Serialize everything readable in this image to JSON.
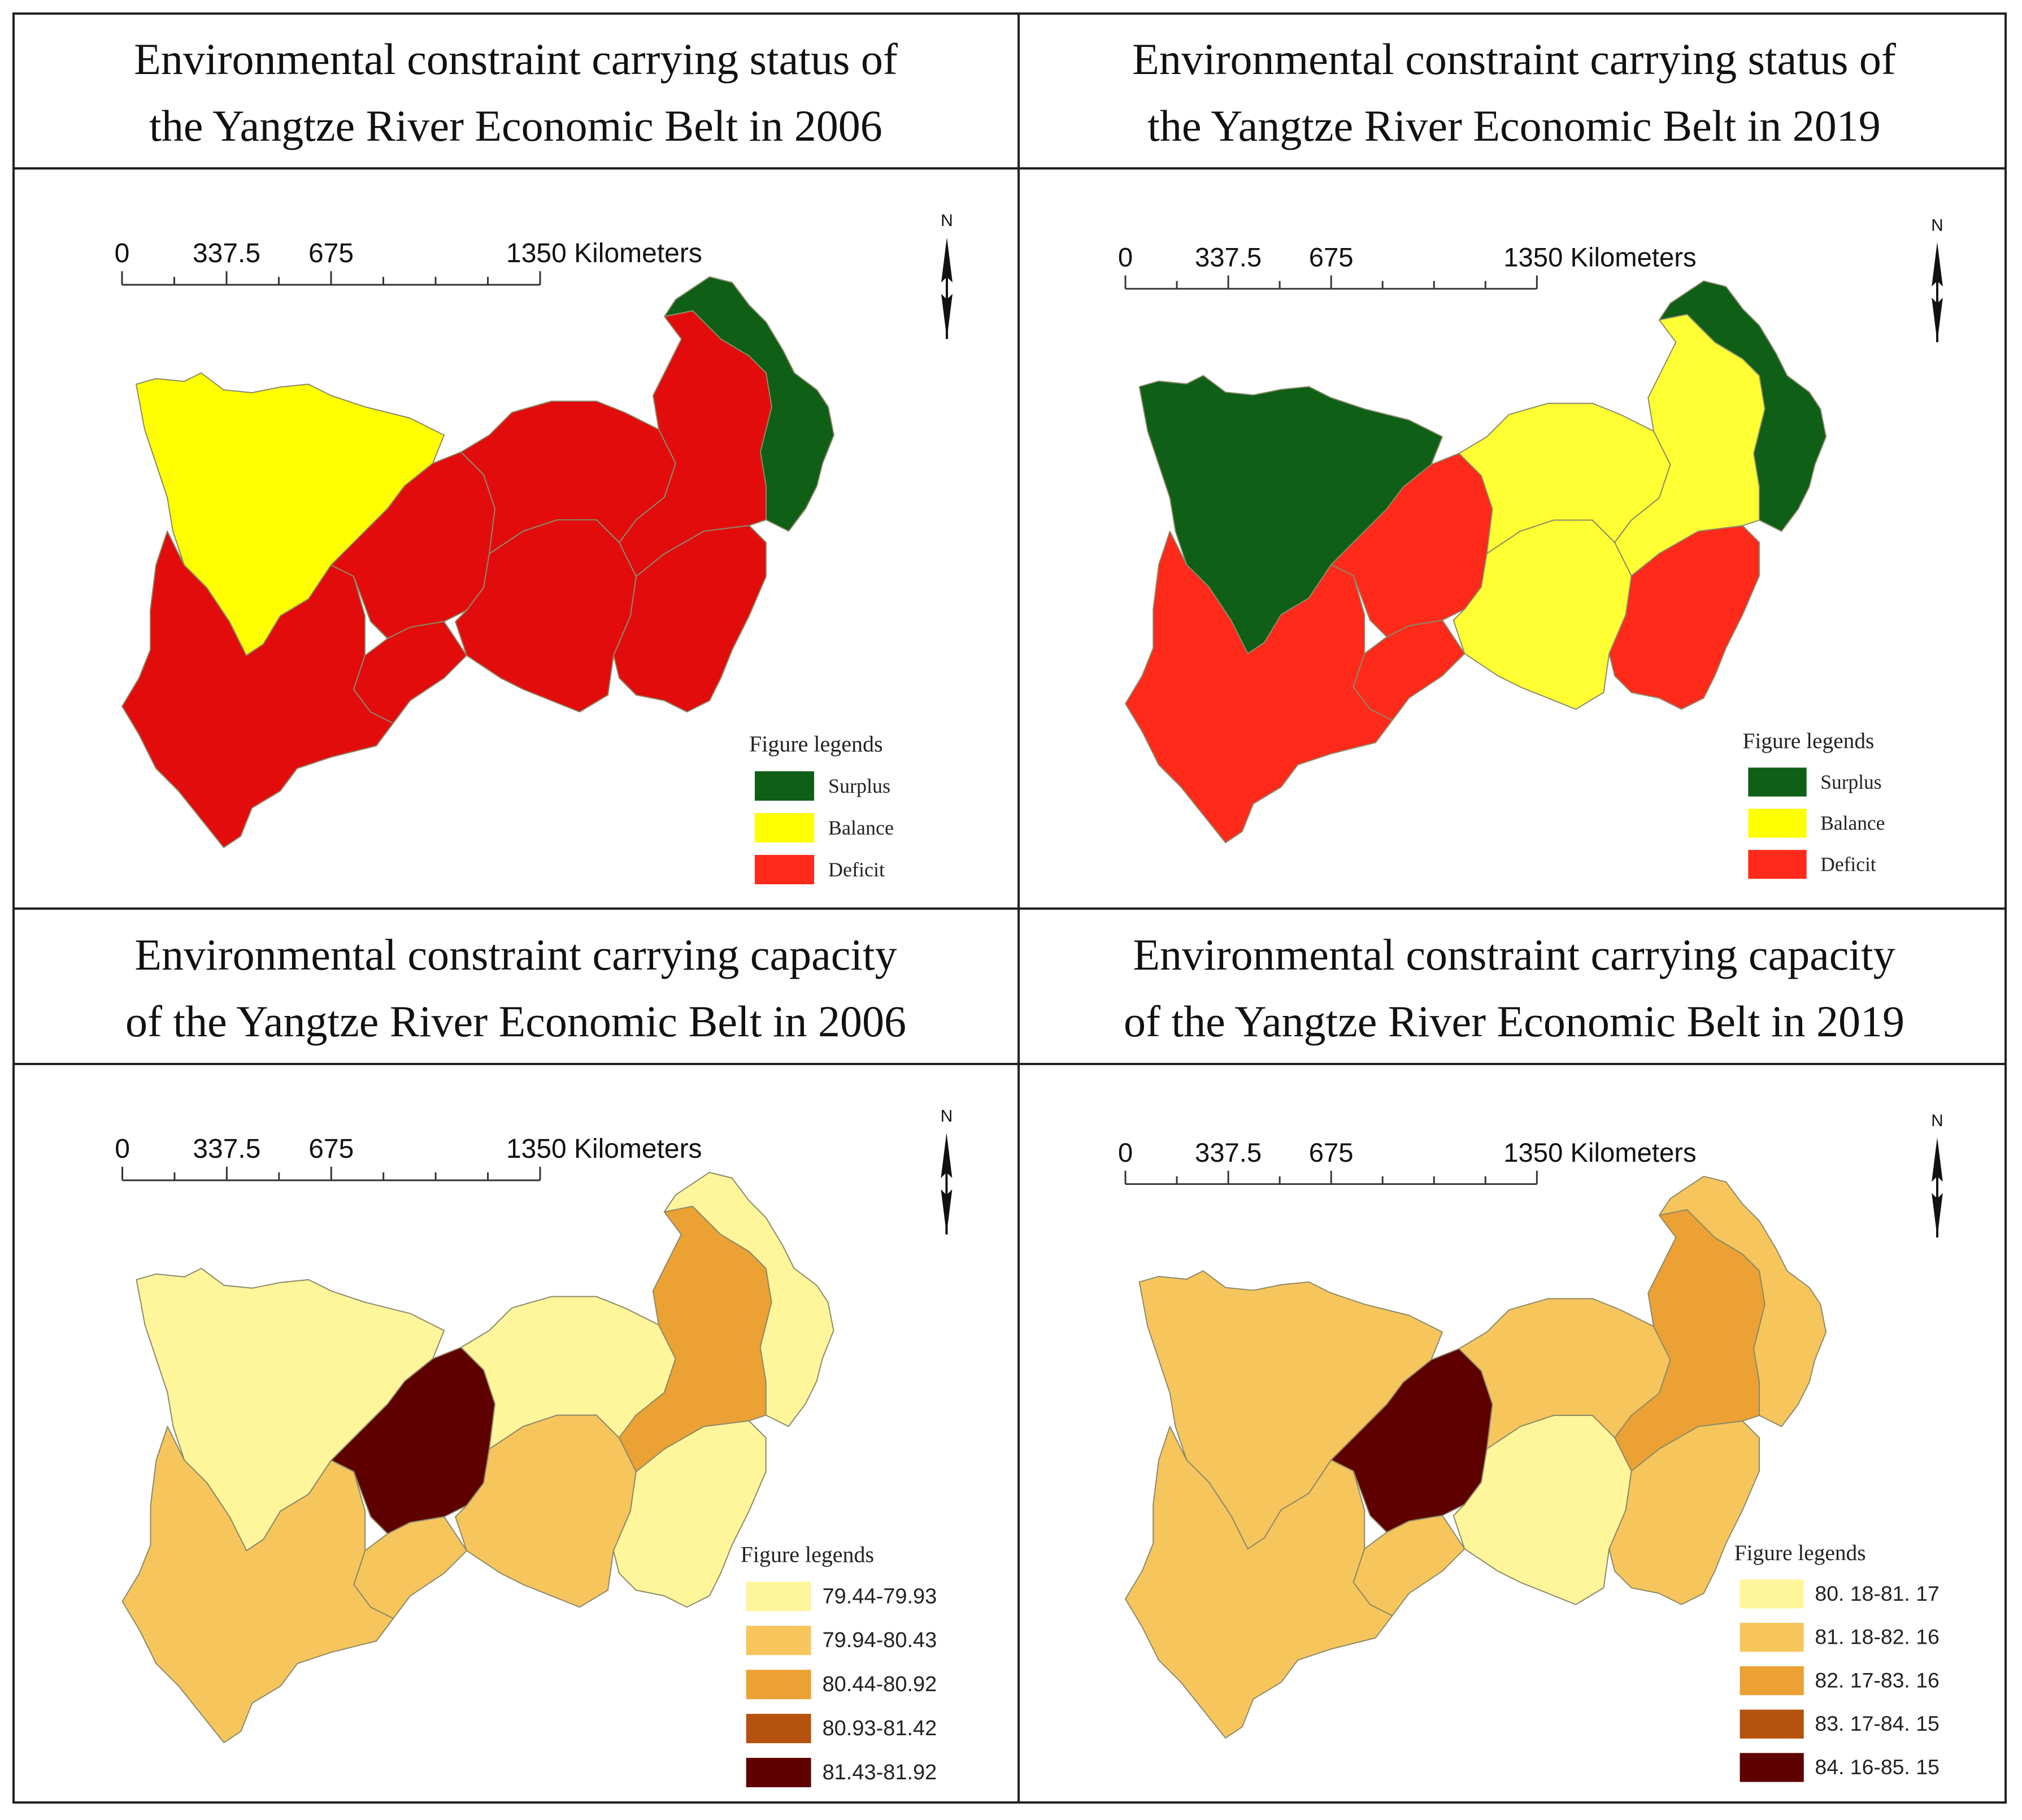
{
  "panels": [
    {
      "id": "status-2006",
      "title_line1": "Environmental constraint carrying status of",
      "title_line2": "the Yangtze River Economic Belt in 2006",
      "scale": {
        "ticks": [
          "0",
          "337.5",
          "675",
          "1350 Kilometers"
        ]
      },
      "north_label": "N",
      "legend": {
        "title": "Figure legends",
        "items": [
          {
            "label": "Surplus",
            "color": "#0f5f16"
          },
          {
            "label": "Balance",
            "color": "#ffff00"
          },
          {
            "label": "Deficit",
            "color": "#ff2a1a"
          }
        ]
      },
      "regions": {
        "west_north": "#ffff00",
        "west_south": "#e20c0c",
        "mid_west": "#e20c0c",
        "mid_south": "#e20c0c",
        "mid_north": "#e20c0c",
        "east_south": "#e20c0c",
        "north_east": "#e20c0c",
        "coast": "#0f5f16",
        "far_south": "#e20c0c"
      }
    },
    {
      "id": "status-2019",
      "title_line1": "Environmental constraint carrying status of",
      "title_line2": "the Yangtze River Economic Belt in 2019",
      "scale": {
        "ticks": [
          "0",
          "337.5",
          "675",
          "1350 Kilometers"
        ]
      },
      "north_label": "N",
      "legend": {
        "title": "Figure legends",
        "items": [
          {
            "label": "Surplus",
            "color": "#0f5f16"
          },
          {
            "label": "Balance",
            "color": "#ffff00"
          },
          {
            "label": "Deficit",
            "color": "#ff2a1a"
          }
        ]
      },
      "regions": {
        "west_north": "#0f5f16",
        "west_south": "#ff2a1a",
        "mid_west": "#ff2a1a",
        "mid_south": "#ffff33",
        "mid_north": "#ffff33",
        "east_south": "#ff2a1a",
        "north_east": "#ffff33",
        "coast": "#0f5f16",
        "far_south": "#ff2a1a"
      }
    },
    {
      "id": "capacity-2006",
      "title_line1": "Environmental constraint carrying capacity",
      "title_line2": "of the Yangtze River Economic Belt in 2006",
      "scale": {
        "ticks": [
          "0",
          "337.5",
          "675",
          "1350 Kilometers"
        ]
      },
      "north_label": "N",
      "legend": {
        "title": "Figure legends",
        "items": [
          {
            "label": "79.44-79.93",
            "color": "#fff59a"
          },
          {
            "label": "79.94-80.43",
            "color": "#f6c55c"
          },
          {
            "label": "80.44-80.92",
            "color": "#eba133"
          },
          {
            "label": "80.93-81.42",
            "color": "#b5520e"
          },
          {
            "label": "81.43-81.92",
            "color": "#5e0000"
          }
        ]
      },
      "regions": {
        "west_north": "#fff59a",
        "west_south": "#f6c55c",
        "mid_west": "#5e0000",
        "mid_south": "#f6c55c",
        "mid_north": "#fff59a",
        "east_south": "#fff59a",
        "north_east": "#eba133",
        "coast": "#fff59a",
        "far_south": "#f6c55c"
      }
    },
    {
      "id": "capacity-2019",
      "title_line1": "Environmental constraint carrying capacity",
      "title_line2": "of the Yangtze River Economic Belt in 2019",
      "scale": {
        "ticks": [
          "0",
          "337.5",
          "675",
          "1350 Kilometers"
        ]
      },
      "north_label": "N",
      "legend": {
        "title": "Figure legends",
        "items": [
          {
            "label": "80. 18-81. 17",
            "color": "#fff59a"
          },
          {
            "label": "81. 18-82. 16",
            "color": "#f6c55c"
          },
          {
            "label": "82. 17-83. 16",
            "color": "#eba133"
          },
          {
            "label": "83. 17-84. 15",
            "color": "#b5520e"
          },
          {
            "label": "84. 16-85. 15",
            "color": "#5e0000"
          }
        ]
      },
      "regions": {
        "west_north": "#f6c55c",
        "west_south": "#f6c55c",
        "mid_west": "#5e0000",
        "mid_south": "#fff59a",
        "mid_north": "#f6c55c",
        "east_south": "#f6c55c",
        "north_east": "#eba133",
        "coast": "#f6c55c",
        "far_south": "#f6c55c"
      }
    }
  ]
}
